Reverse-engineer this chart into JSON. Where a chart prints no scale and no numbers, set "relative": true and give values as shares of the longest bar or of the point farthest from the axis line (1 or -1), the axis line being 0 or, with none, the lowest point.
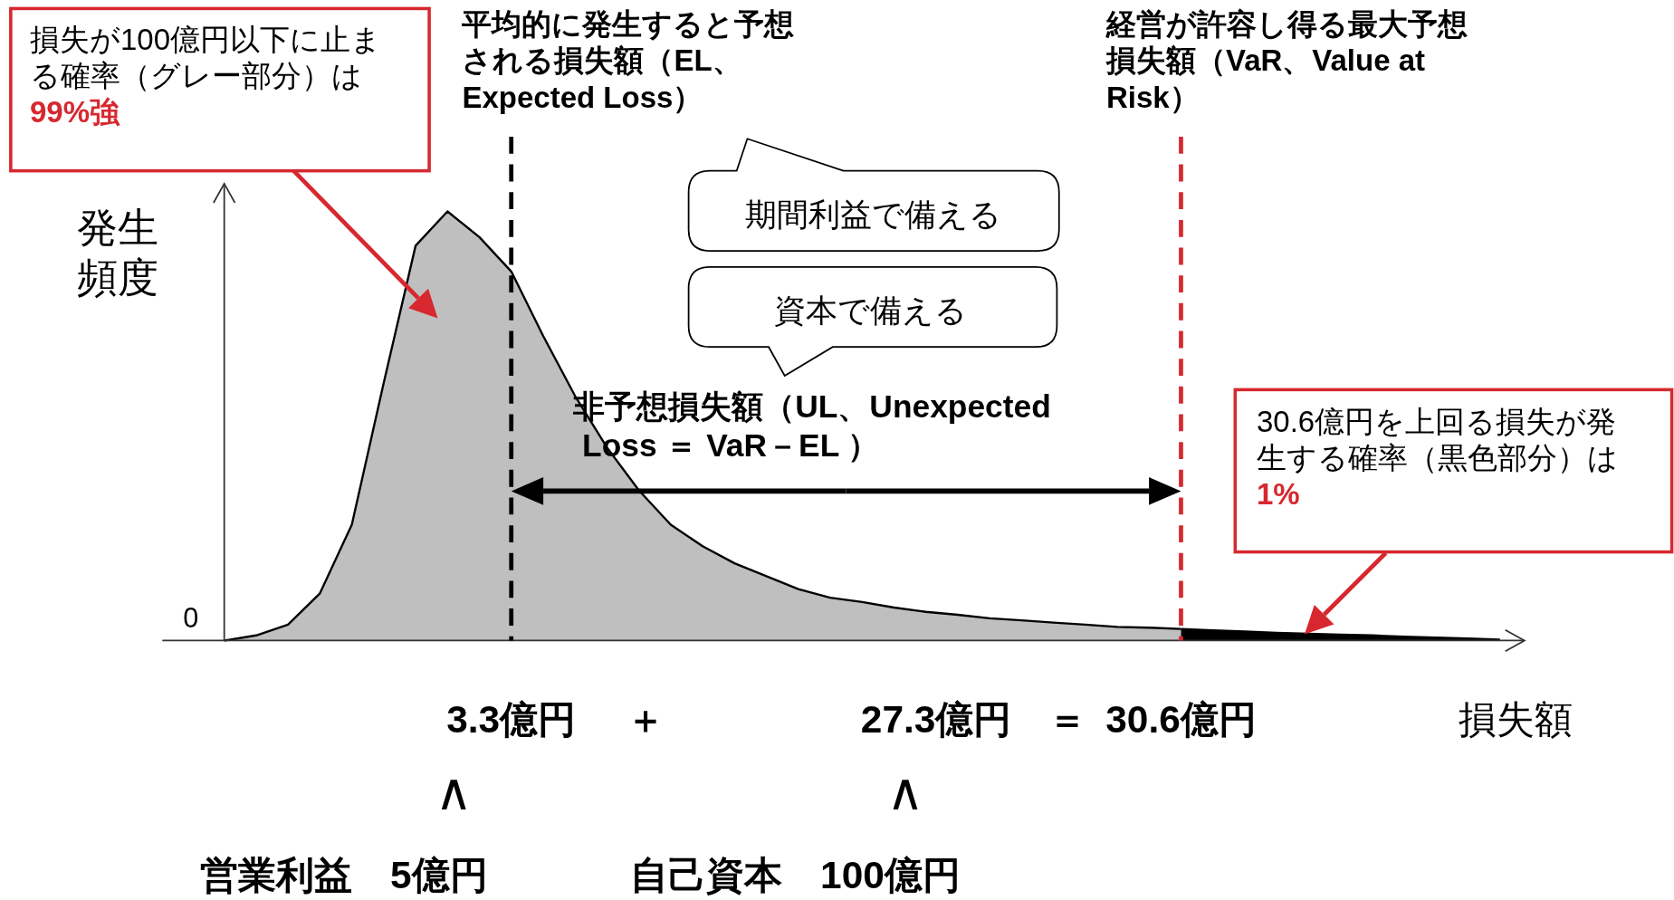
{
  "chart_data": {
    "type": "area",
    "relative": true,
    "categories": [
      null,
      null,
      null,
      null,
      null,
      null,
      null,
      null,
      null,
      "3.3億円",
      null,
      null,
      null,
      null,
      null,
      null,
      null,
      null,
      null,
      null,
      null,
      null,
      null,
      null,
      null,
      null,
      null,
      null,
      null,
      null,
      "30.6億円",
      null,
      null,
      null,
      null,
      null,
      null,
      null,
      null,
      null,
      null
    ],
    "series": [
      {
        "color": "#bfbfbf",
        "values": [
          0,
          0.012,
          0.037,
          0.11,
          0.27,
          0.6,
          0.92,
          1.0,
          0.94,
          0.86,
          0.71,
          0.57,
          0.45,
          0.35,
          0.27,
          0.22,
          0.18,
          0.15,
          0.12,
          0.1,
          0.09,
          0.077,
          0.067,
          0.06,
          0.052,
          0.047,
          0.042,
          0.037,
          0.032,
          0.03,
          0.027,
          null,
          null,
          null,
          null,
          null,
          null,
          null,
          null,
          null,
          null
        ]
      },
      {
        "color": "#000000",
        "values": [
          null,
          null,
          null,
          null,
          null,
          null,
          null,
          null,
          null,
          null,
          null,
          null,
          null,
          null,
          null,
          null,
          null,
          null,
          null,
          null,
          null,
          null,
          null,
          null,
          null,
          null,
          null,
          null,
          null,
          null,
          0.027,
          0.024,
          0.021,
          0.018,
          0.016,
          0.014,
          0.012,
          0.009,
          0.007,
          0.005,
          0.002
        ]
      }
    ],
    "xlabel": "損失額",
    "ylabel": "発生頻度",
    "ref_lines": [
      {
        "axis": "x",
        "value": "3.3億円",
        "color": "#000000",
        "line_style": "dashed",
        "label": "平均的に発生すると予想される損失額（EL、Expected Loss）"
      },
      {
        "axis": "x",
        "value": "30.6億円",
        "color": "#d7282f",
        "line_style": "dashed",
        "label": "経営が許容し得る最大予想損失額（VaR、Value at Risk）"
      }
    ],
    "annotations": [
      "損失が100億円以下に止まる確率（グレー部分）は ",
      "99%強",
      "30.6億円を上回る損失が発生する確率（黒色部分）は ",
      "1%",
      "期間利益で備える",
      "資本で備える",
      "非予想損失額（UL、Unexpected\n Loss ＝ VaR－EL ）",
      "＋",
      "27.3億円",
      "＝",
      "∧",
      "∧",
      "営業利益　5億円",
      "自己資本　100億円",
      "0"
    ]
  }
}
